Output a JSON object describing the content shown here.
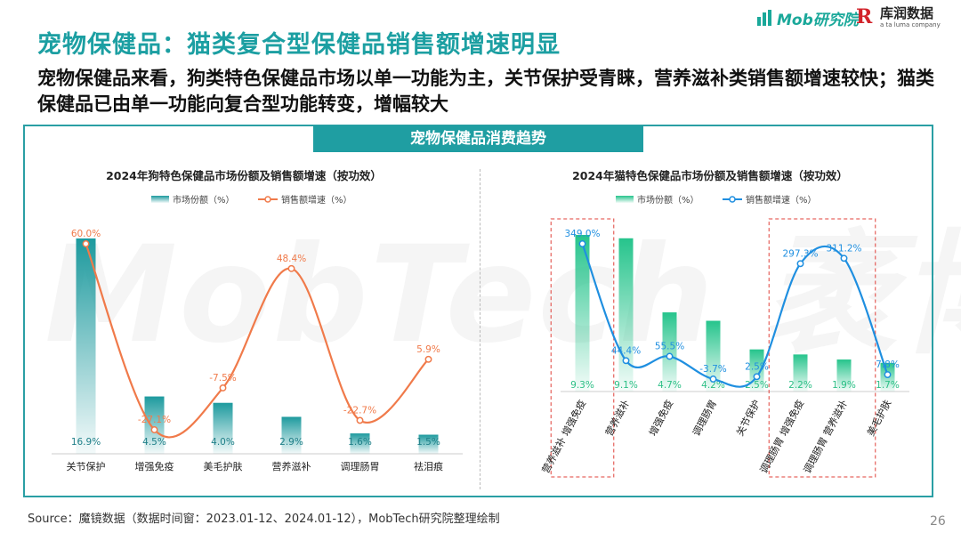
{
  "header": {
    "title": "宠物保健品：猫类复合型保健品销售额增速明显",
    "subtitle": "宠物保健品来看，狗类特色保健品市场以单一功能为主，关节保护受青睐，营养滋补类销售额增速较快；猫类保健品已由单一功能向复合型功能转变，增幅较大"
  },
  "logos": {
    "mob": "Mob研究院",
    "kuchun_cn": "库润数据",
    "kuchun_en": "a ta luma company"
  },
  "watermark": "MobTech 袤博",
  "panel_header": "宠物保健品消费趋势",
  "colors": {
    "teal": "#1f9ea2",
    "bar_dog": "#1d9a9e",
    "bar_cat": "#26c48c",
    "line_dog": "#f07a4a",
    "line_cat": "#1f8fe0",
    "dash_box": "#e0403a"
  },
  "chart_data": [
    {
      "type": "bar",
      "title": "2024年狗特色保健品市场份额及销售额增速（按功效）",
      "legend": [
        "市场份额（%）",
        "销售额增速（%）"
      ],
      "categories": [
        "关节保护",
        "增强免疫",
        "美毛护肤",
        "营养滋补",
        "调理肠胃",
        "祛泪痕"
      ],
      "series": [
        {
          "name": "市场份额（%）",
          "kind": "bar",
          "values": [
            16.9,
            4.5,
            4.0,
            2.9,
            1.6,
            1.5
          ],
          "labels": [
            "16.9%",
            "4.5%",
            "4.0%",
            "2.9%",
            "1.6%",
            "1.5%"
          ]
        },
        {
          "name": "销售额增速（%）",
          "kind": "line",
          "values": [
            60.0,
            -27.1,
            -7.5,
            48.4,
            -22.7,
            5.9
          ],
          "labels": [
            "60.0%",
            "-27.1%",
            "-7.5%",
            "48.4%",
            "-22.7%",
            "5.9%"
          ]
        }
      ]
    },
    {
      "type": "bar",
      "title": "2024年猫特色保健品市场份额及销售额增速（按功效）",
      "legend": [
        "市场份额（%）",
        "销售额增速（%）"
      ],
      "categories": [
        "营养滋补 增强免疫",
        "营养滋补",
        "增强免疫",
        "调理肠胃",
        "关节保护",
        "调理肠胃 增强免疫",
        "调理肠胃 营养滋补",
        "美毛护肤"
      ],
      "series": [
        {
          "name": "市场份额（%）",
          "kind": "bar",
          "values": [
            9.3,
            9.1,
            4.7,
            4.2,
            2.5,
            2.2,
            1.9,
            1.7
          ],
          "labels": [
            "9.3%",
            "9.1%",
            "4.7%",
            "4.2%",
            "2.5%",
            "2.2%",
            "1.9%",
            "1.7%"
          ]
        },
        {
          "name": "销售额增速（%）",
          "kind": "line",
          "values": [
            349.0,
            44.4,
            55.5,
            -3.7,
            2.5,
            297.3,
            311.2,
            7.8
          ],
          "labels": [
            "349.0%",
            "44.4%",
            "55.5%",
            "-3.7%",
            "2.5%",
            "297.3%",
            "311.2%",
            "7.8%"
          ]
        }
      ]
    }
  ],
  "footer": {
    "source": "Source：魔镜数据（数据时间窗：2023.01-12、2024.01-12），MobTech研究院整理绘制",
    "page": "26"
  }
}
